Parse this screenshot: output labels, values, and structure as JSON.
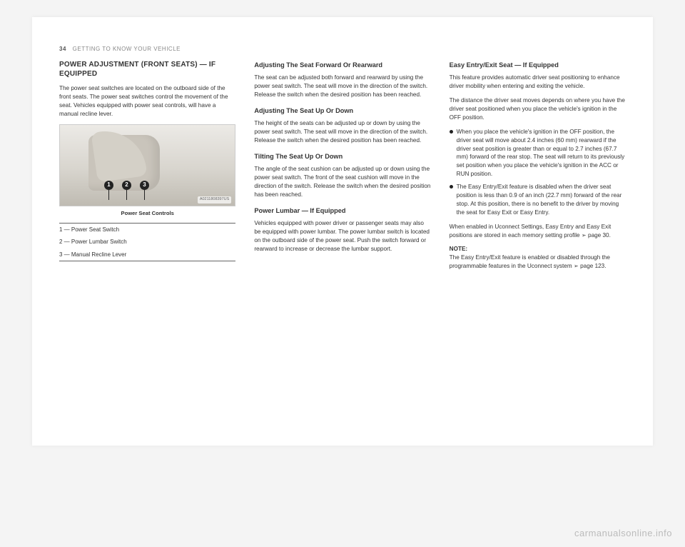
{
  "header": {
    "page_number": "34",
    "section": "GETTING TO KNOW YOUR VEHICLE"
  },
  "col1": {
    "title": "POWER ADJUSTMENT (FRONT SEATS) — IF EQUIPPED",
    "p1": "The power seat switches are located on the outboard side of the front seats. The power seat switches control the movement of the seat. Vehicles equipped with power seat controls, will have a manual recline lever.",
    "figure": {
      "code": "A0211808397US",
      "caption": "Power Seat Controls",
      "markers": [
        "1",
        "2",
        "3"
      ],
      "legend": [
        "1 — Power Seat Switch",
        "2 — Power Lumbar Switch",
        "3 — Manual Recline Lever"
      ]
    }
  },
  "col2": {
    "h1": "Adjusting The Seat Forward Or Rearward",
    "p1": "The seat can be adjusted both forward and rearward by using the power seat switch. The seat will move in the direction of the switch. Release the switch when the desired position has been reached.",
    "h2": "Adjusting The Seat Up Or Down",
    "p2": "The height of the seats can be adjusted up or down by using the power seat switch. The seat will move in the direction of the switch. Release the switch when the desired position has been reached.",
    "h3": "Tilting The Seat Up Or Down",
    "p3": "The angle of the seat cushion can be adjusted up or down using the power seat switch. The front of the seat cushion will move in the direction of the switch. Release the switch when the desired position has been reached.",
    "h4": "Power Lumbar — If Equipped",
    "p4": "Vehicles equipped with power driver or passenger seats may also be equipped with power lumbar. The power lumbar switch is located on the outboard side of the power seat. Push the switch forward or rearward to increase or decrease the lumbar support."
  },
  "col3": {
    "h1": "Easy Entry/Exit Seat — If Equipped",
    "p1": "This feature provides automatic driver seat positioning to enhance driver mobility when entering and exiting the vehicle.",
    "p2": "The distance the driver seat moves depends on where you have the driver seat positioned when you place the vehicle's ignition in the OFF position.",
    "bullets": [
      "When you place the vehicle's ignition in the OFF position, the driver seat will move about 2.4 inches (60 mm) rearward if the driver seat position is greater than or equal to 2.7 inches (67.7 mm) forward of the rear stop. The seat will return to its previously set position when you place the vehicle's ignition in the ACC or RUN position.",
      "The Easy Entry/Exit feature is disabled when the driver seat position is less than 0.9 of an inch (22.7 mm) forward of the rear stop. At this position, there is no benefit to the driver by moving the seat for Easy Exit or Easy Entry."
    ],
    "p3a": "When enabled in Uconnect Settings, Easy Entry and Easy Exit positions are stored in each memory setting profile ",
    "p3b": "➢ page 30.",
    "note_label": "NOTE:",
    "note_a": "The Easy Entry/Exit feature is enabled or disabled through the programmable features in the Uconnect system ",
    "note_b": "➢ page 123."
  },
  "watermark": "carmanualsonline.info"
}
